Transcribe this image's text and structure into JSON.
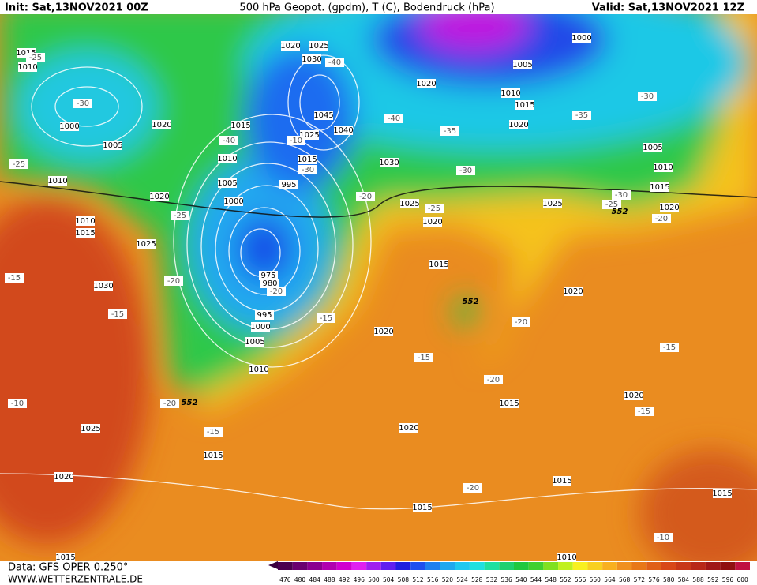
{
  "header": {
    "init": "Init: Sat,13NOV2021 00Z",
    "title": "500 hPa Geopot. (gpdm), T (C), Bodendruck (hPa)",
    "valid": "Valid: Sat,13NOV2021 12Z"
  },
  "footer": {
    "data": "Data: GFS OPER 0.250°",
    "site": "WWW.WETTERZENTRALE.DE"
  },
  "legend": {
    "levels": [
      476,
      480,
      484,
      488,
      492,
      496,
      500,
      504,
      508,
      512,
      516,
      520,
      524,
      528,
      532,
      536,
      540,
      544,
      548,
      552,
      556,
      560,
      564,
      568,
      572,
      576,
      580,
      584,
      588,
      592,
      596,
      600
    ]
  },
  "isobar_labels": [
    1015,
    1010,
    1000,
    1005,
    1020,
    1015,
    1010,
    1005,
    1000,
    1020,
    1010,
    1010,
    1015,
    1025,
    1030,
    975,
    980,
    995,
    1000,
    1005,
    1010,
    1020,
    1025,
    1030,
    1045,
    1025,
    1015,
    1040,
    1030,
    995,
    1020,
    1025,
    1020,
    1015,
    1020,
    1020,
    1015,
    1015,
    1025,
    1020,
    1015,
    1015,
    1015,
    1010,
    1015,
    1000,
    1005,
    1010,
    1015,
    1020,
    1005,
    1010,
    1015,
    1020,
    1025,
    1020,
    1020
  ],
  "temperature_labels": [
    -25,
    -30,
    -25,
    -40,
    -10,
    -30,
    -40,
    -40,
    -35,
    -30,
    -35,
    -30,
    -20,
    -25,
    -30,
    -25,
    -20,
    -25,
    -15,
    -20,
    -20,
    -15,
    -15,
    -20,
    -15,
    -15,
    -20,
    -10,
    -20,
    -15,
    -15,
    -20,
    -10
  ],
  "geopotential_labels": [
    552,
    552,
    552
  ]
}
